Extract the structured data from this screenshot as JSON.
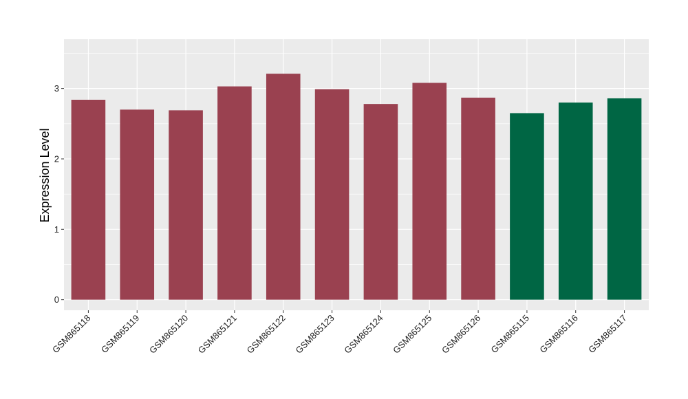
{
  "chart_data": {
    "type": "bar",
    "title": "",
    "xlabel": "",
    "ylabel": "Expression Level",
    "ylim": [
      -0.15,
      3.7
    ],
    "yticks": [
      0,
      1,
      2,
      3
    ],
    "grid": true,
    "categories": [
      "GSM865118",
      "GSM865119",
      "GSM865120",
      "GSM865121",
      "GSM865122",
      "GSM865123",
      "GSM865124",
      "GSM865125",
      "GSM865126",
      "GSM865115",
      "GSM865116",
      "GSM865117"
    ],
    "values": [
      2.84,
      2.7,
      2.69,
      3.03,
      3.21,
      2.99,
      2.78,
      3.08,
      2.87,
      2.65,
      2.8,
      2.86
    ],
    "group_of_bar": [
      0,
      0,
      0,
      0,
      0,
      0,
      0,
      0,
      0,
      1,
      1,
      1
    ],
    "group_colors": [
      "#9a4150",
      "#006644"
    ],
    "panel_background": "#ebebeb",
    "gridline_color": "#ffffff"
  }
}
